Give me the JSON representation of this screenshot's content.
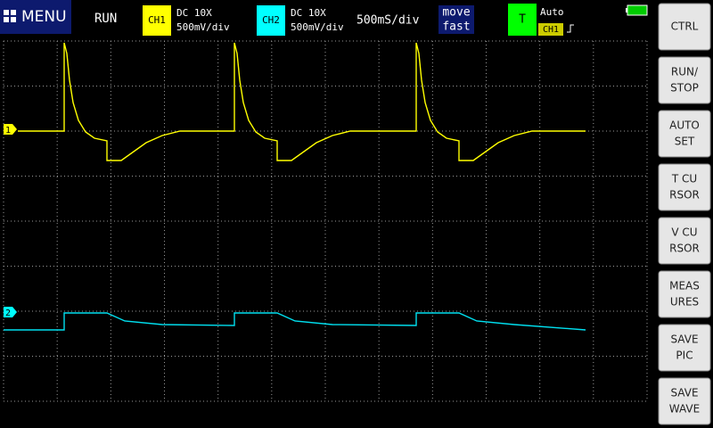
{
  "menu": "MENU",
  "status": "RUN",
  "ch1": {
    "label": "CH1",
    "coupling": "DC 10X",
    "scale": "500mV/div"
  },
  "ch2": {
    "label": "CH2",
    "coupling": "DC 10X",
    "scale": "500mV/div"
  },
  "timebase": "500mS/div",
  "move": [
    "move",
    "fast"
  ],
  "trigger": {
    "label": "T",
    "mode": "Auto",
    "source": "CH1"
  },
  "markers": [
    "1",
    "2"
  ],
  "buttons": [
    [
      "CTRL"
    ],
    [
      "RUN/",
      "STOP"
    ],
    [
      "AUTO",
      "SET"
    ],
    [
      "T CU",
      "RSOR"
    ],
    [
      "V CU",
      "RSOR"
    ],
    [
      "MEAS",
      "URES"
    ],
    [
      "SAVE",
      "PIC"
    ],
    [
      "SAVE",
      "WAVE"
    ]
  ]
}
